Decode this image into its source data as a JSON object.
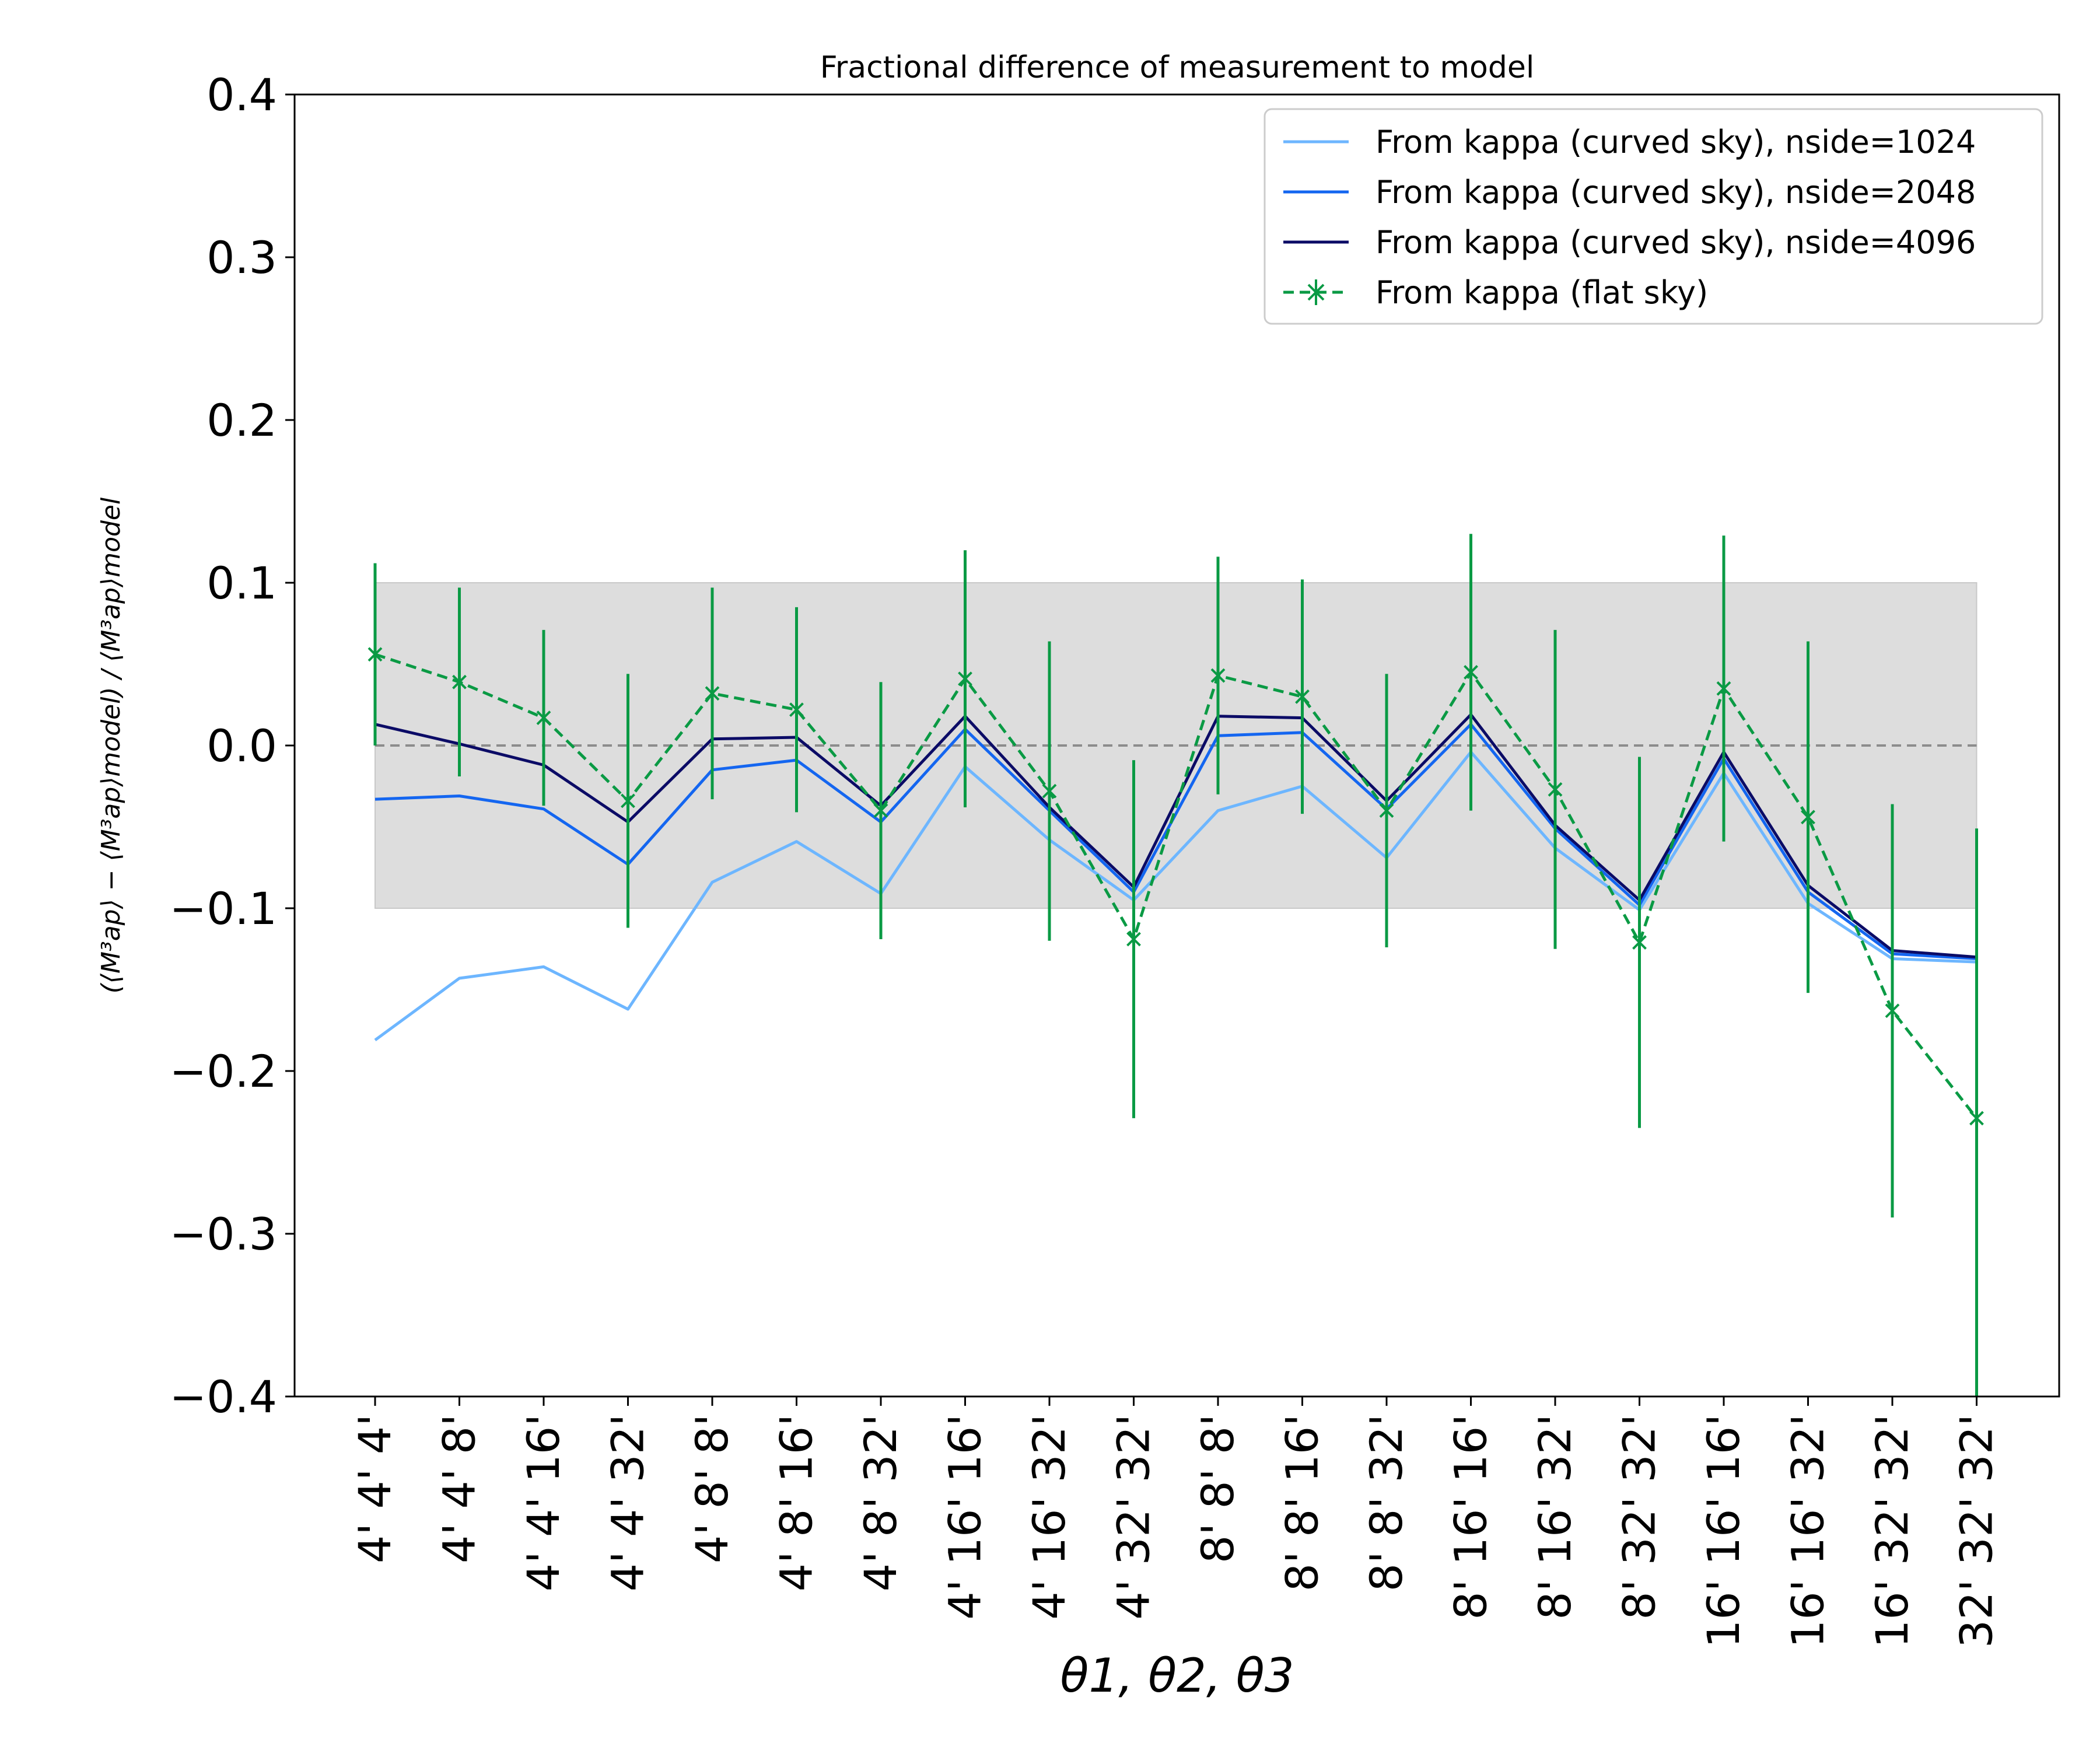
{
  "chart_data": {
    "type": "line",
    "title": "Fractional difference of measurement to model",
    "xlabel": "θ1, θ2, θ3",
    "ylabel": "(⟨M³ap⟩ − ⟨M³ap⟩model) / ⟨M³ap⟩model",
    "ylim": [
      -0.4,
      0.4
    ],
    "yticks": [
      "0.4",
      "0.3",
      "0.2",
      "0.1",
      "0.0",
      "−0.1",
      "−0.2",
      "−0.3",
      "−0.4"
    ],
    "ytick_values": [
      0.4,
      0.3,
      0.2,
      0.1,
      0.0,
      -0.1,
      -0.2,
      -0.3,
      -0.4
    ],
    "categories": [
      "4' 4' 4'",
      "4' 4' 8'",
      "4' 4' 16'",
      "4' 4' 32'",
      "4' 8' 8'",
      "4' 8' 16'",
      "4' 8' 32'",
      "4' 16' 16'",
      "4' 16' 32'",
      "4' 32' 32'",
      "8' 8' 8'",
      "8' 8' 16'",
      "8' 8' 32'",
      "8' 16' 16'",
      "8' 16' 32'",
      "8' 32' 32'",
      "16' 16' 16'",
      "16' 16' 32'",
      "16' 32' 32'",
      "32' 32' 32'"
    ],
    "band": {
      "low": -0.1,
      "high": 0.1,
      "color": "#dddddd"
    },
    "reference_line": {
      "y": 0.0,
      "color": "#8c8c8c"
    },
    "legend_position": "upper right",
    "series": [
      {
        "name": "From kappa (curved sky), nside=1024",
        "color": "#6db6ff",
        "style": "solid",
        "values": [
          -0.181,
          -0.143,
          -0.136,
          -0.162,
          -0.084,
          -0.059,
          -0.091,
          -0.013,
          -0.058,
          -0.095,
          -0.04,
          -0.025,
          -0.069,
          -0.004,
          -0.063,
          -0.101,
          -0.017,
          -0.097,
          -0.131,
          -0.133
        ]
      },
      {
        "name": "From kappa (curved sky), nside=2048",
        "color": "#1466f0",
        "style": "solid",
        "values": [
          -0.033,
          -0.031,
          -0.039,
          -0.073,
          -0.015,
          -0.009,
          -0.047,
          0.01,
          -0.04,
          -0.09,
          0.006,
          0.008,
          -0.039,
          0.013,
          -0.051,
          -0.098,
          -0.008,
          -0.09,
          -0.128,
          -0.131
        ]
      },
      {
        "name": "From kappa (curved sky), nside=4096",
        "color": "#0b0b66",
        "style": "solid",
        "values": [
          0.013,
          0.001,
          -0.012,
          -0.047,
          0.004,
          0.005,
          -0.037,
          0.018,
          -0.038,
          -0.087,
          0.018,
          0.017,
          -0.034,
          0.019,
          -0.049,
          -0.095,
          -0.004,
          -0.086,
          -0.126,
          -0.13
        ]
      },
      {
        "name": "From kappa (flat sky)",
        "color": "#0a9a44",
        "style": "dashed",
        "marker": "x",
        "values": [
          0.056,
          0.039,
          0.017,
          -0.034,
          0.032,
          0.022,
          -0.04,
          0.041,
          -0.028,
          -0.119,
          0.043,
          0.03,
          -0.04,
          0.045,
          -0.027,
          -0.121,
          0.035,
          -0.044,
          -0.163,
          -0.229
        ],
        "errors": [
          0.056,
          0.058,
          0.054,
          0.078,
          0.065,
          0.063,
          0.079,
          0.079,
          0.092,
          0.11,
          0.073,
          0.072,
          0.084,
          0.085,
          0.098,
          0.114,
          0.094,
          0.108,
          0.127,
          0.178
        ]
      }
    ]
  }
}
